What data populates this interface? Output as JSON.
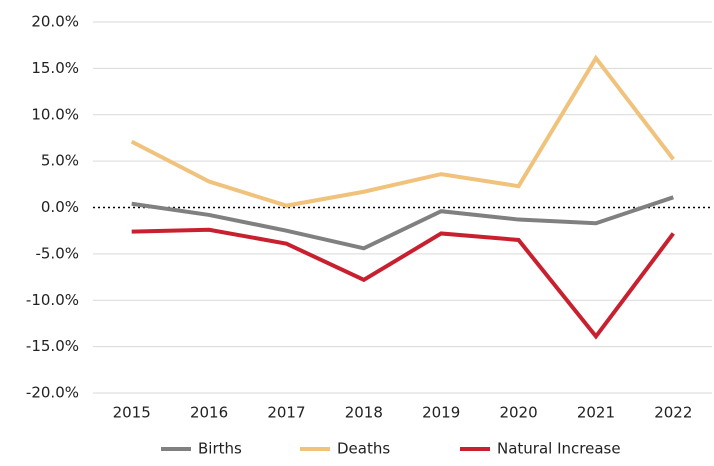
{
  "chart_data": {
    "type": "line",
    "categories": [
      "2015",
      "2016",
      "2017",
      "2018",
      "2019",
      "2020",
      "2021",
      "2022"
    ],
    "series": [
      {
        "name": "Births",
        "color": "#808080",
        "values": [
          0.4,
          -0.8,
          -2.5,
          -4.4,
          -0.4,
          -1.3,
          -1.7,
          1.1
        ]
      },
      {
        "name": "Deaths",
        "color": "#f0c27b",
        "values": [
          7.1,
          2.8,
          0.2,
          1.7,
          3.6,
          2.3,
          16.1,
          5.2
        ]
      },
      {
        "name": "Natural Increase",
        "color": "#c8202f",
        "values": [
          -2.6,
          -2.4,
          -3.9,
          -7.8,
          -2.8,
          -3.5,
          -13.9,
          -2.8
        ]
      }
    ],
    "ylim": [
      -20,
      20
    ],
    "yticks": [
      {
        "value": 20,
        "label": "20.0%"
      },
      {
        "value": 15,
        "label": "15.0%"
      },
      {
        "value": 10,
        "label": "10.0%"
      },
      {
        "value": 5,
        "label": "5.0%"
      },
      {
        "value": 0,
        "label": "0.0%"
      },
      {
        "value": -5,
        "label": "-5.0%"
      },
      {
        "value": -10,
        "label": "-10.0%"
      },
      {
        "value": -15,
        "label": "-15.0%"
      },
      {
        "value": -20,
        "label": "-20.0%"
      }
    ],
    "grid": true,
    "legend": "bottom"
  }
}
